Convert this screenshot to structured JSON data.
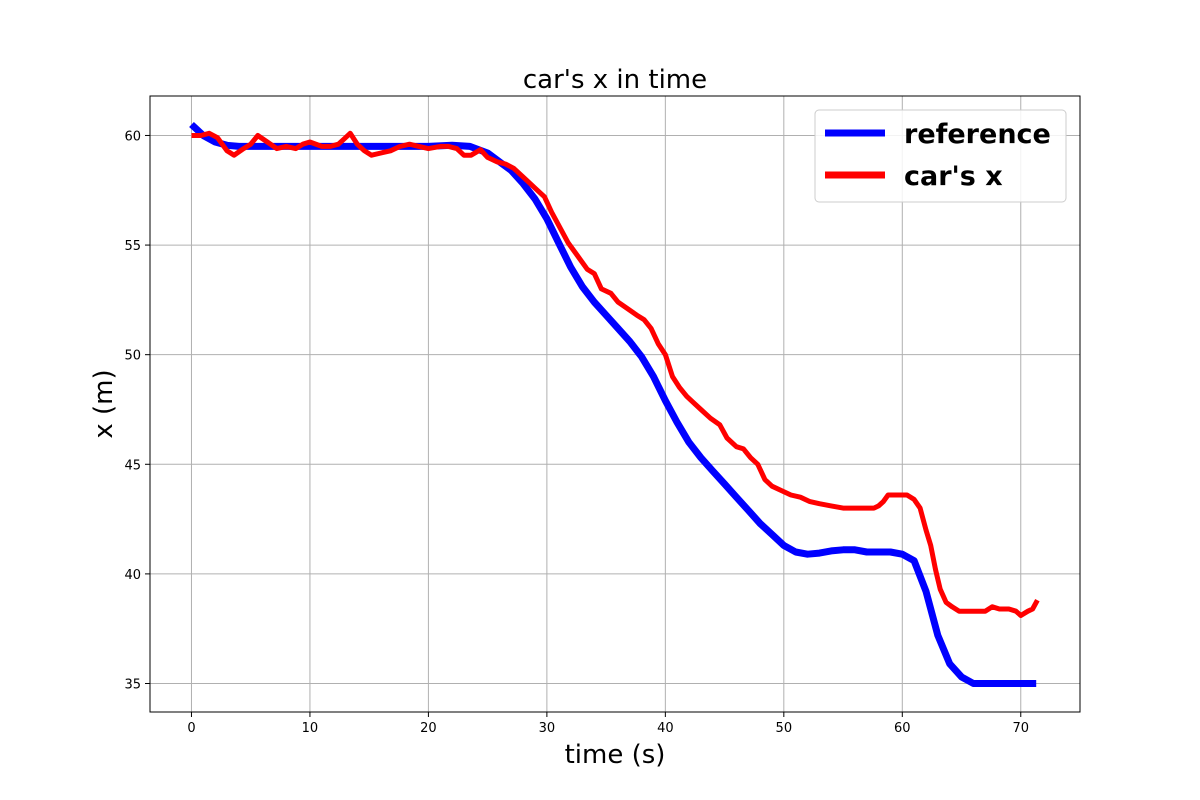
{
  "chart_data": {
    "type": "line",
    "title": "car's x in time",
    "xlabel": "time (s)",
    "ylabel": "x (m)",
    "xlim": [
      -3.5,
      75
    ],
    "ylim": [
      33.7,
      61.8
    ],
    "xticks": [
      0,
      10,
      20,
      30,
      40,
      50,
      60,
      70
    ],
    "yticks": [
      35,
      40,
      45,
      50,
      55,
      60
    ],
    "grid": true,
    "legend_position": "top-right",
    "series": [
      {
        "name": "reference",
        "color": "#0000ff",
        "x": [
          0,
          1,
          2,
          3,
          4,
          6,
          10,
          15,
          20,
          22,
          23.5,
          25,
          26,
          27,
          28,
          29,
          30,
          31,
          32,
          33,
          34,
          35,
          36,
          37,
          38,
          39,
          40,
          41,
          42,
          43,
          44,
          45,
          46,
          47,
          48,
          49,
          50,
          51,
          52,
          53,
          54,
          55,
          56,
          57,
          58,
          59,
          60,
          61,
          62,
          63,
          64,
          65,
          66,
          67,
          68,
          69,
          70,
          71.3
        ],
        "y": [
          60.5,
          60.0,
          59.7,
          59.55,
          59.5,
          59.5,
          59.5,
          59.5,
          59.5,
          59.55,
          59.5,
          59.2,
          58.8,
          58.4,
          57.8,
          57.1,
          56.2,
          55.1,
          54.0,
          53.1,
          52.4,
          51.8,
          51.2,
          50.6,
          49.9,
          49.0,
          47.9,
          46.9,
          46.0,
          45.3,
          44.7,
          44.1,
          43.5,
          42.9,
          42.3,
          41.8,
          41.3,
          41.0,
          40.9,
          40.95,
          41.05,
          41.1,
          41.1,
          41.0,
          41.0,
          41.0,
          40.9,
          40.6,
          39.2,
          37.2,
          35.9,
          35.3,
          35.0,
          35.0,
          35.0,
          35.0,
          35.0,
          35.0
        ],
        "width": 7
      },
      {
        "name": "car's x",
        "color": "#ff0000",
        "x": [
          0,
          0.8,
          1.5,
          2.2,
          3,
          3.6,
          4.4,
          5,
          5.6,
          6.4,
          7.2,
          8,
          8.8,
          9.4,
          10,
          11,
          11.7,
          12.4,
          13,
          13.4,
          14,
          14.6,
          15.2,
          16,
          16.8,
          17.6,
          18.4,
          19.2,
          20,
          21,
          21.7,
          22.4,
          23,
          23.6,
          24.4,
          25,
          25.8,
          26.5,
          27.2,
          28,
          28.6,
          29.2,
          29.8,
          30.4,
          31,
          31.8,
          32.6,
          33.4,
          34,
          34.6,
          35.4,
          36,
          36.8,
          37.6,
          38.2,
          38.8,
          39.4,
          40,
          40.6,
          41.2,
          41.8,
          42.4,
          43,
          43.8,
          44.6,
          45.2,
          46,
          46.6,
          47.2,
          47.8,
          48.4,
          49,
          49.8,
          50.6,
          51.4,
          52.2,
          53,
          54,
          55,
          56,
          57,
          57.6,
          58,
          58.4,
          58.8,
          59.2,
          59.8,
          60.4,
          61,
          61.5,
          62,
          62.4,
          62.8,
          63.2,
          63.7,
          64.2,
          64.8,
          65.5,
          66.2,
          67,
          67.6,
          68.2,
          69,
          69.6,
          70,
          70.6,
          71,
          71.4
        ],
        "y": [
          60.0,
          60.0,
          60.1,
          59.9,
          59.3,
          59.1,
          59.4,
          59.6,
          60.0,
          59.7,
          59.4,
          59.5,
          59.4,
          59.6,
          59.7,
          59.5,
          59.5,
          59.6,
          59.9,
          60.1,
          59.6,
          59.3,
          59.1,
          59.2,
          59.3,
          59.5,
          59.6,
          59.5,
          59.4,
          59.5,
          59.5,
          59.4,
          59.1,
          59.1,
          59.35,
          59.0,
          58.8,
          58.7,
          58.5,
          58.1,
          57.8,
          57.5,
          57.2,
          56.5,
          55.9,
          55.1,
          54.5,
          53.9,
          53.7,
          53.0,
          52.8,
          52.4,
          52.1,
          51.8,
          51.6,
          51.2,
          50.5,
          50.0,
          49.0,
          48.5,
          48.1,
          47.8,
          47.5,
          47.1,
          46.8,
          46.2,
          45.8,
          45.7,
          45.3,
          45.0,
          44.3,
          44.0,
          43.8,
          43.6,
          43.5,
          43.3,
          43.2,
          43.1,
          43.0,
          43.0,
          43.0,
          43.0,
          43.1,
          43.3,
          43.6,
          43.6,
          43.6,
          43.6,
          43.4,
          43.0,
          42.0,
          41.3,
          40.2,
          39.3,
          38.7,
          38.5,
          38.3,
          38.3,
          38.3,
          38.3,
          38.5,
          38.4,
          38.4,
          38.3,
          38.1,
          38.3,
          38.4,
          38.8
        ],
        "width": 5
      }
    ]
  }
}
